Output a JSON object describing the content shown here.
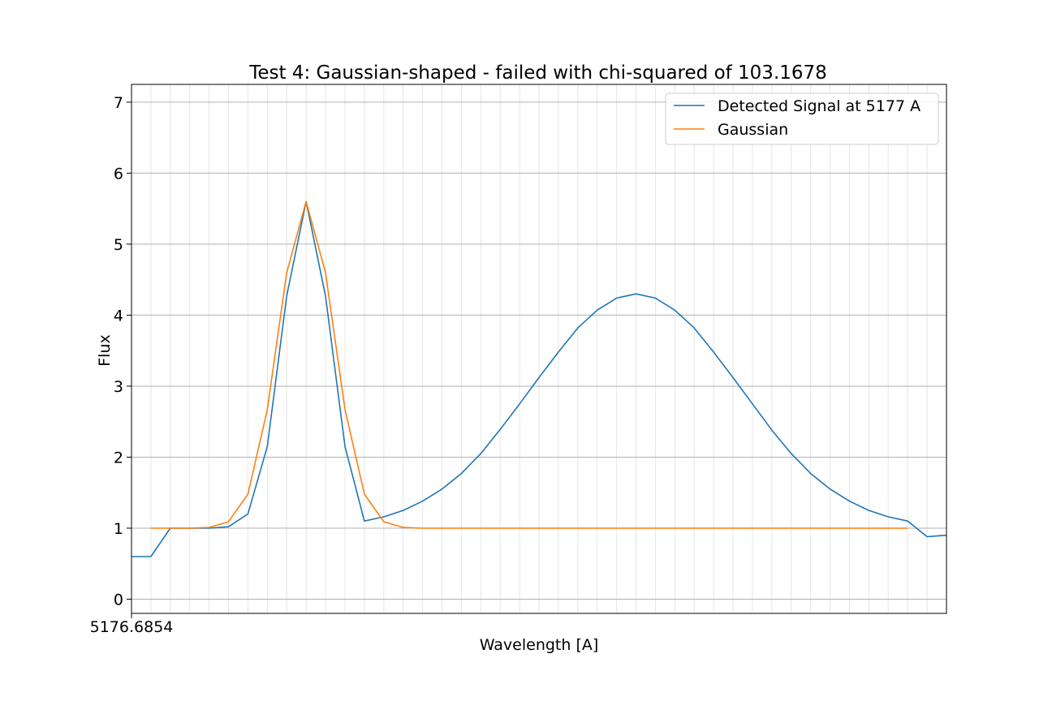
{
  "chart_data": {
    "type": "line",
    "title": "Test 4: Gaussian-shaped - failed with chi-squared of 103.1678",
    "xlabel": "Wavelength [A]",
    "ylabel": "Flux",
    "x_tick_labels": [
      "5176.6854"
    ],
    "x_range": [
      0,
      42
    ],
    "y_range": [
      -0.2,
      7.25
    ],
    "y_ticks": [
      0,
      1,
      2,
      3,
      4,
      5,
      6,
      7
    ],
    "grid": "horizontal major lines and faint vertical minor lines",
    "legend_position": "top-right",
    "series": [
      {
        "name": "Detected Signal at 5177 A",
        "color": "#1f77b4",
        "x": [
          0,
          1,
          2,
          3,
          4,
          5,
          6,
          7,
          8,
          9,
          10,
          11,
          12,
          13,
          14,
          15,
          16,
          17,
          18,
          19,
          20,
          21,
          22,
          23,
          24,
          25,
          26,
          27,
          28,
          29,
          30,
          31,
          32,
          33,
          34,
          35,
          36,
          37,
          38,
          39,
          40,
          41,
          42
        ],
        "values": [
          0.6,
          0.6,
          1.0,
          1.0,
          1.0,
          1.02,
          1.2,
          2.15,
          4.27,
          5.6,
          4.27,
          2.15,
          1.1,
          1.16,
          1.25,
          1.38,
          1.55,
          1.77,
          2.05,
          2.39,
          2.75,
          3.12,
          3.48,
          3.82,
          4.07,
          4.24,
          4.3,
          4.24,
          4.07,
          3.82,
          3.48,
          3.12,
          2.75,
          2.38,
          2.05,
          1.77,
          1.55,
          1.38,
          1.25,
          1.16,
          1.1,
          0.88,
          0.9
        ]
      },
      {
        "name": "Gaussian",
        "color": "#ff7f0e",
        "x": [
          1,
          2,
          3,
          4,
          5,
          6,
          7,
          8,
          9,
          10,
          11,
          12,
          13,
          14,
          15,
          16,
          17,
          18,
          19,
          20,
          21,
          22,
          23,
          24,
          25,
          26,
          27,
          28,
          29,
          30,
          31,
          32,
          33,
          34,
          35,
          36,
          37,
          38,
          39,
          40
        ],
        "values": [
          1.0,
          1.0,
          1.0,
          1.01,
          1.09,
          1.48,
          2.67,
          4.6,
          5.6,
          4.6,
          2.67,
          1.48,
          1.09,
          1.01,
          1.0,
          1.0,
          1.0,
          1.0,
          1.0,
          1.0,
          1.0,
          1.0,
          1.0,
          1.0,
          1.0,
          1.0,
          1.0,
          1.0,
          1.0,
          1.0,
          1.0,
          1.0,
          1.0,
          1.0,
          1.0,
          1.0,
          1.0,
          1.0,
          1.0,
          1.0
        ]
      }
    ]
  }
}
